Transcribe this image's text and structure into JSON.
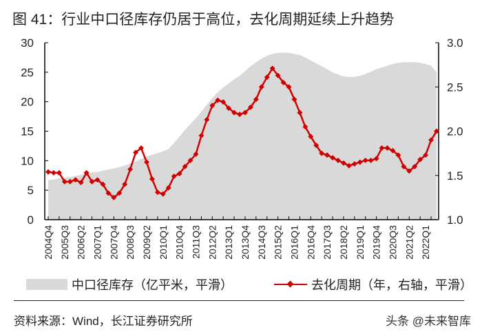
{
  "title": "图 41：行业中口径库存仍居于高位，去化周期延续上升趋势",
  "chart_data": {
    "type": "area+line",
    "title": "图 41：行业中口径库存仍居于高位，去化周期延续上升趋势",
    "x_tick_labels": [
      "2004Q4",
      "2005Q3",
      "2006Q2",
      "2007Q1",
      "2007Q4",
      "2008Q3",
      "2009Q2",
      "2010Q1",
      "2010Q4",
      "2011Q3",
      "2012Q2",
      "2013Q1",
      "2013Q4",
      "2014Q3",
      "2015Q2",
      "2016Q1",
      "2016Q4",
      "2017Q3",
      "2018Q2",
      "2019Q1",
      "2019Q4",
      "2020Q3",
      "2021Q2",
      "2022Q1"
    ],
    "x_start": "2004Q4",
    "x_end": "2022Q3",
    "y_left": {
      "lim": [
        0,
        30
      ],
      "ticks": [
        0,
        5,
        10,
        15,
        20,
        25,
        30
      ]
    },
    "y_right": {
      "lim": [
        1.0,
        3.0
      ],
      "ticks": [
        "1.0",
        "1.5",
        "2.0",
        "2.5",
        "3.0"
      ]
    },
    "grid": false,
    "legend_position": "bottom",
    "series": [
      {
        "name": "中口径库存（亿平米，平滑）",
        "type": "area",
        "axis": "left",
        "color": "#d9d9d9",
        "values": [
          6.7,
          6.8,
          7.0,
          7.1,
          7.2,
          7.4,
          7.6,
          7.8,
          8.0,
          8.1,
          8.3,
          8.5,
          8.7,
          8.9,
          9.2,
          9.5,
          9.9,
          10.3,
          10.7,
          11.0,
          11.3,
          11.6,
          12.0,
          13.0,
          14.1,
          15.2,
          16.2,
          17.2,
          18.3,
          19.5,
          20.6,
          21.6,
          22.4,
          23.1,
          23.8,
          24.4,
          25.2,
          26.0,
          26.7,
          27.3,
          27.8,
          28.1,
          28.3,
          28.3,
          28.3,
          28.1,
          27.9,
          27.5,
          27.0,
          26.5,
          26.0,
          25.5,
          25.0,
          24.6,
          24.3,
          24.2,
          24.2,
          24.4,
          24.7,
          25.1,
          25.5,
          25.8,
          26.1,
          26.4,
          26.6,
          26.7,
          26.7,
          26.7,
          26.6,
          26.4,
          26.1,
          25.0
        ]
      },
      {
        "name": "去化周期（年，右轴，平滑）",
        "type": "line",
        "axis": "right",
        "color": "#d00000",
        "values": [
          1.54,
          1.53,
          1.53,
          1.43,
          1.43,
          1.45,
          1.42,
          1.53,
          1.43,
          1.45,
          1.4,
          1.3,
          1.25,
          1.3,
          1.4,
          1.57,
          1.76,
          1.81,
          1.65,
          1.46,
          1.31,
          1.29,
          1.36,
          1.49,
          1.52,
          1.6,
          1.67,
          1.74,
          1.95,
          2.13,
          2.29,
          2.35,
          2.33,
          2.26,
          2.21,
          2.19,
          2.21,
          2.27,
          2.36,
          2.5,
          2.61,
          2.71,
          2.63,
          2.55,
          2.5,
          2.36,
          2.21,
          2.05,
          1.94,
          1.84,
          1.75,
          1.73,
          1.7,
          1.67,
          1.64,
          1.61,
          1.63,
          1.65,
          1.67,
          1.67,
          1.69,
          1.81,
          1.81,
          1.78,
          1.73,
          1.6,
          1.55,
          1.6,
          1.68,
          1.73,
          1.9,
          2.0
        ]
      }
    ]
  },
  "legend": {
    "area_label": "中口径库存（亿平米，平滑）",
    "line_label": "去化周期（年，右轴，平滑）"
  },
  "source": "资料来源：Wind，长江证券研究所",
  "watermark": "头条 @未来智库"
}
